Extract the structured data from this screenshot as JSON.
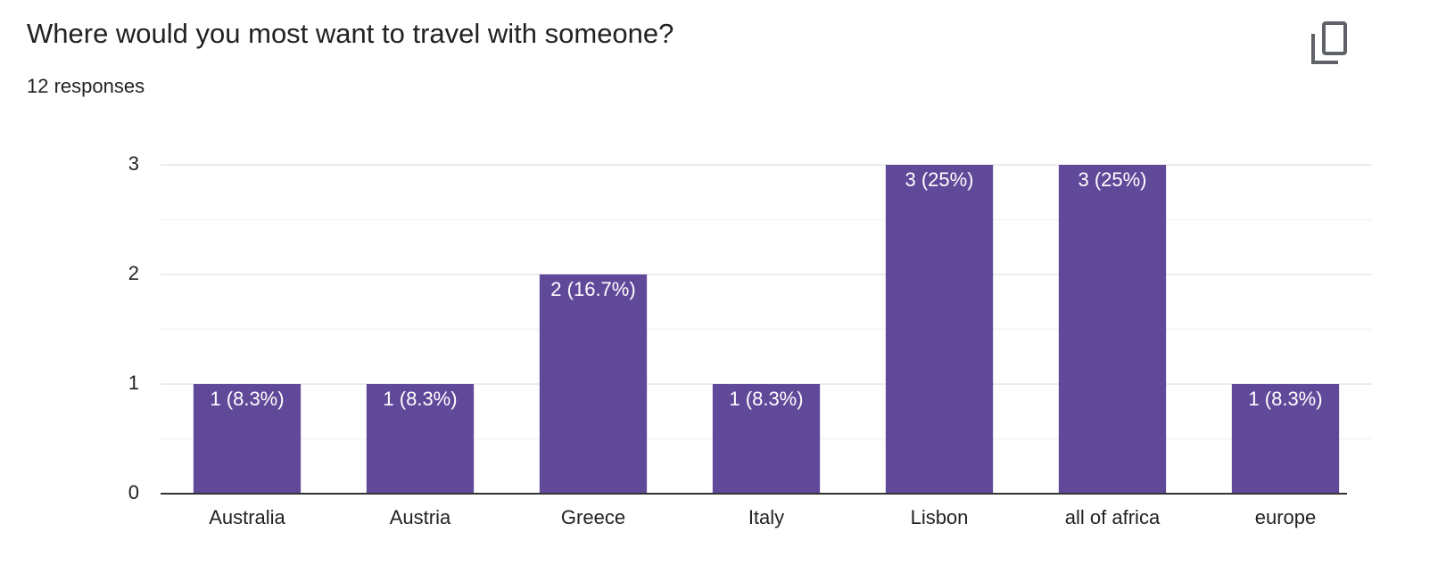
{
  "chart_data": {
    "type": "bar",
    "title": "Where would you most want to travel with someone?",
    "subtitle": "12 responses",
    "categories": [
      "Australia",
      "Austria",
      "Greece",
      "Italy",
      "Lisbon",
      "all of africa",
      "europe"
    ],
    "values": [
      1,
      1,
      2,
      1,
      3,
      3,
      1
    ],
    "value_labels": [
      "1 (8.3%)",
      "1 (8.3%)",
      "2 (16.7%)",
      "1 (8.3%)",
      "3 (25%)",
      "3 (25%)",
      "1 (8.3%)"
    ],
    "color": "#61499a",
    "ylim": [
      0,
      3
    ],
    "yticks": [
      0,
      1,
      2,
      3
    ],
    "minor_yticks": [
      0.5,
      1.5,
      2.5
    ],
    "grid": true
  }
}
